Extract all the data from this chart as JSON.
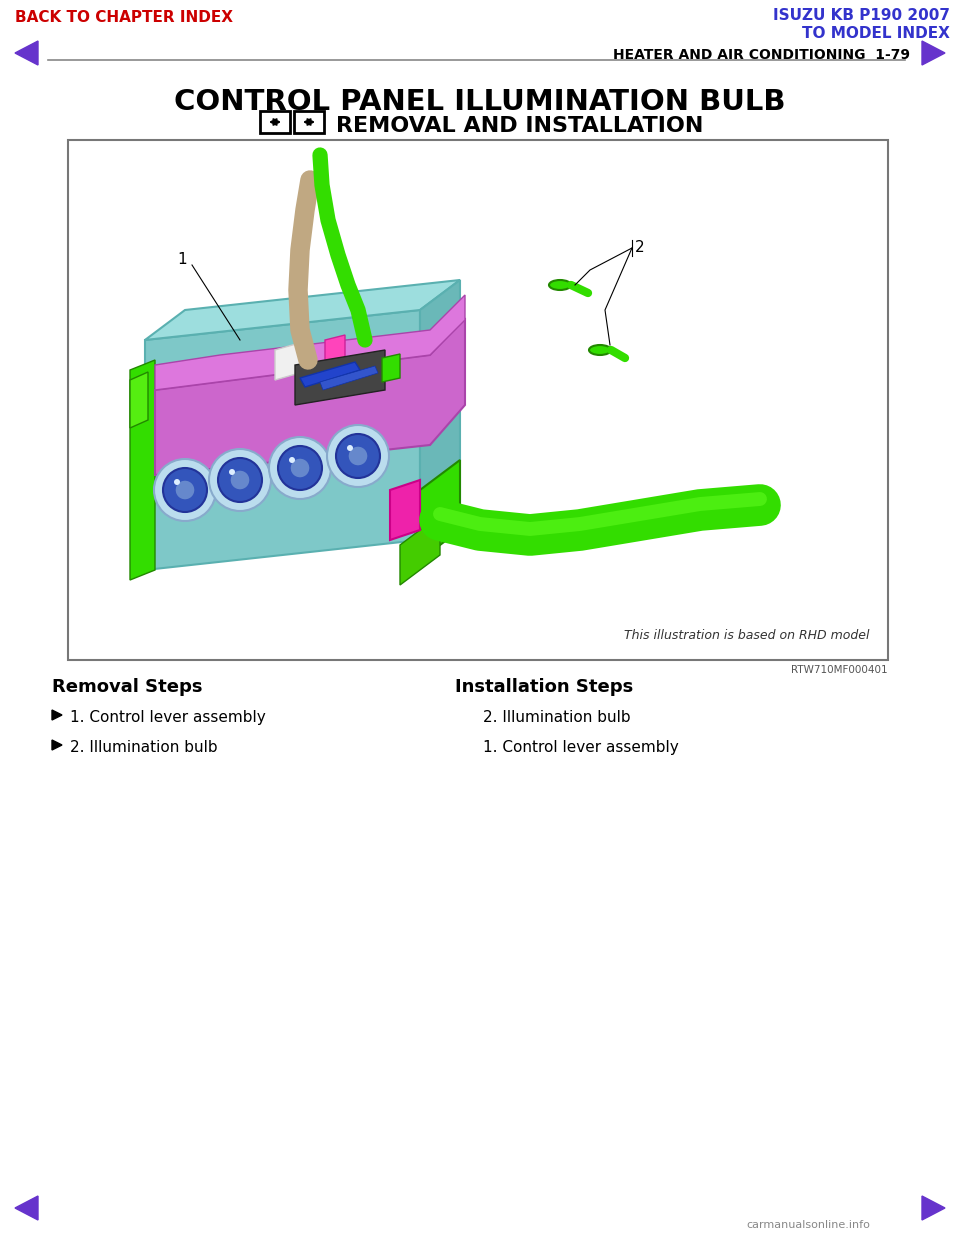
{
  "page_title": "CONTROL PANEL ILLUMINATION BULB",
  "subtitle": "REMOVAL AND INSTALLATION",
  "header_left": "BACK TO CHAPTER INDEX",
  "header_right_line1": "ISUZU KB P190 2007",
  "header_right_line2": "TO MODEL INDEX",
  "section_label": "HEATER AND AIR CONDITIONING  1-79",
  "image_caption": "This illustration is based on RHD model",
  "image_ref": "RTW710MF000401",
  "removal_title": "Removal Steps",
  "removal_items": [
    "1. Control lever assembly",
    "2. Illumination bulb"
  ],
  "installation_title": "Installation Steps",
  "installation_items": [
    "2. Illumination bulb",
    "1. Control lever assembly"
  ],
  "bg_color": "#ffffff",
  "header_left_color": "#cc0000",
  "header_right_color": "#3333cc",
  "section_label_color": "#000000",
  "title_color": "#000000",
  "box_border_color": "#777777",
  "nav_arrow_color": "#6633cc",
  "logo_color": "#888888"
}
